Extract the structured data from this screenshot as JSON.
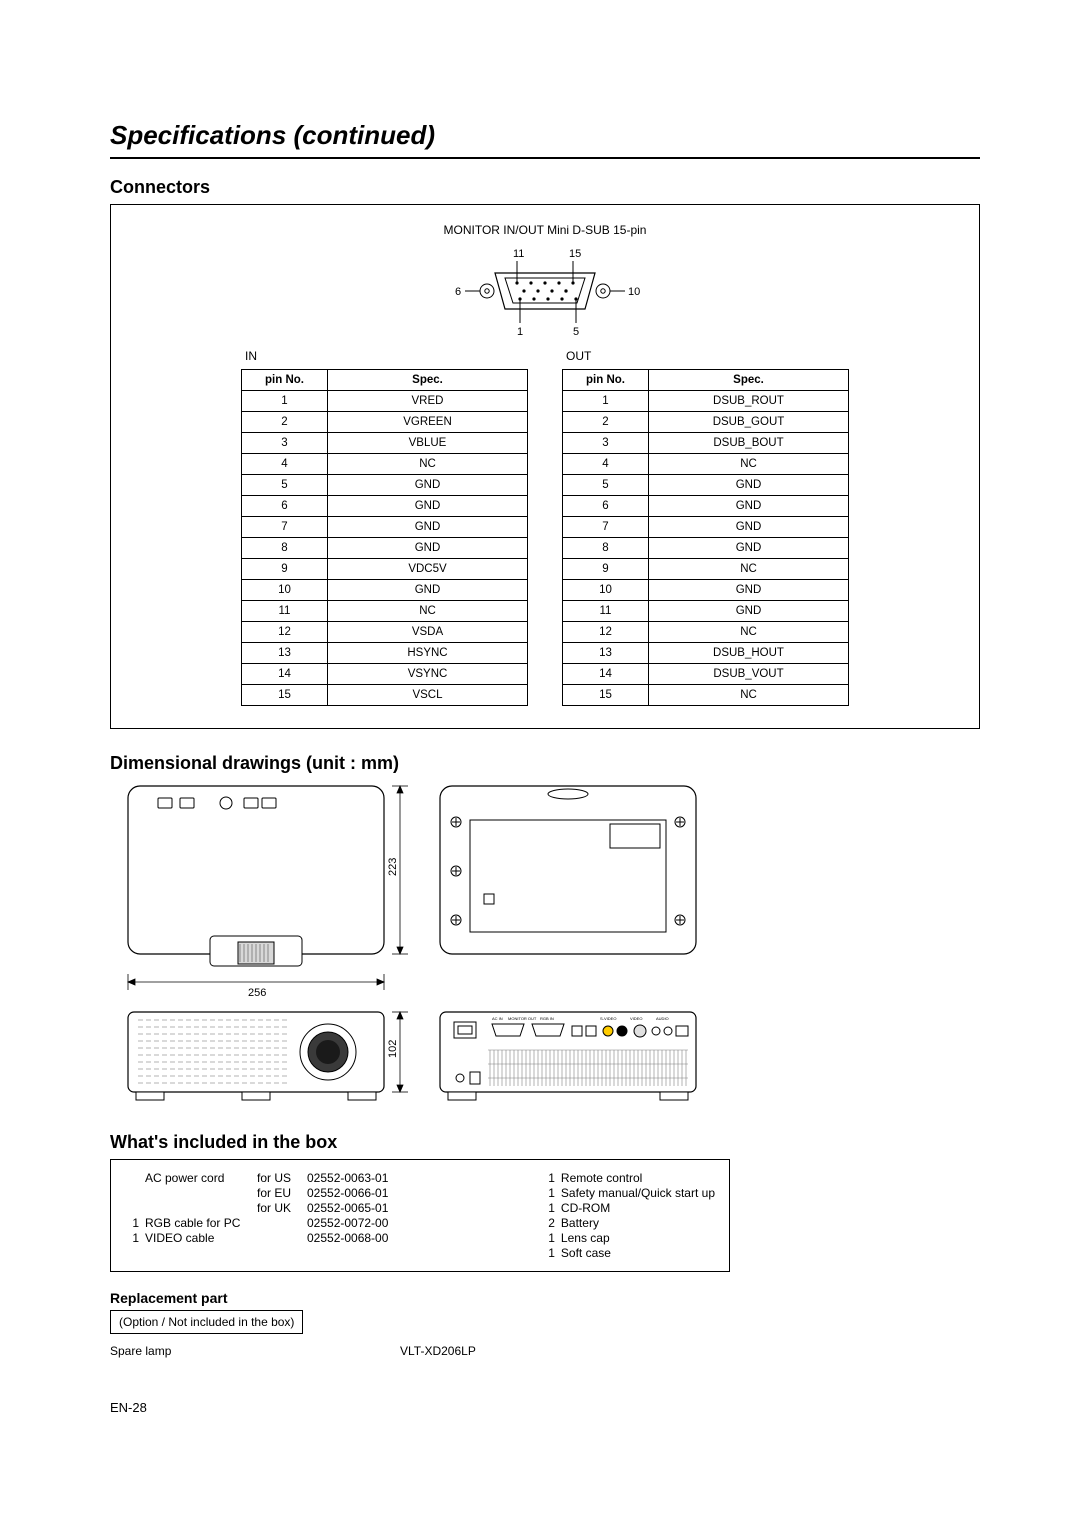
{
  "title": "Specifications (continued)",
  "sections": {
    "connectors": "Connectors",
    "dimensional": "Dimensional drawings (unit : mm)",
    "included": "What's included in the box",
    "replacement": "Replacement part"
  },
  "connector": {
    "caption": "MONITOR IN/OUT Mini D-SUB 15-pin",
    "diagram_labels": {
      "tl": "11",
      "tr": "15",
      "ml": "6",
      "mr": "10",
      "bl": "1",
      "br": "5"
    },
    "in_label": "IN",
    "out_label": "OUT",
    "headers": {
      "pin": "pin No.",
      "spec": "Spec."
    },
    "in_table": [
      {
        "pin": "1",
        "spec": "VRED"
      },
      {
        "pin": "2",
        "spec": "VGREEN"
      },
      {
        "pin": "3",
        "spec": "VBLUE"
      },
      {
        "pin": "4",
        "spec": "NC"
      },
      {
        "pin": "5",
        "spec": "GND"
      },
      {
        "pin": "6",
        "spec": "GND"
      },
      {
        "pin": "7",
        "spec": "GND"
      },
      {
        "pin": "8",
        "spec": "GND"
      },
      {
        "pin": "9",
        "spec": "VDC5V"
      },
      {
        "pin": "10",
        "spec": "GND"
      },
      {
        "pin": "11",
        "spec": "NC"
      },
      {
        "pin": "12",
        "spec": "VSDA"
      },
      {
        "pin": "13",
        "spec": "HSYNC"
      },
      {
        "pin": "14",
        "spec": "VSYNC"
      },
      {
        "pin": "15",
        "spec": "VSCL"
      }
    ],
    "out_table": [
      {
        "pin": "1",
        "spec": "DSUB_ROUT"
      },
      {
        "pin": "2",
        "spec": "DSUB_GOUT"
      },
      {
        "pin": "3",
        "spec": "DSUB_BOUT"
      },
      {
        "pin": "4",
        "spec": "NC"
      },
      {
        "pin": "5",
        "spec": "GND"
      },
      {
        "pin": "6",
        "spec": "GND"
      },
      {
        "pin": "7",
        "spec": "GND"
      },
      {
        "pin": "8",
        "spec": "GND"
      },
      {
        "pin": "9",
        "spec": "NC"
      },
      {
        "pin": "10",
        "spec": "GND"
      },
      {
        "pin": "11",
        "spec": "GND"
      },
      {
        "pin": "12",
        "spec": "NC"
      },
      {
        "pin": "13",
        "spec": "DSUB_HOUT"
      },
      {
        "pin": "14",
        "spec": "DSUB_VOUT"
      },
      {
        "pin": "15",
        "spec": "NC"
      }
    ]
  },
  "dimensions": {
    "width": "256",
    "height": "223",
    "depth": "102"
  },
  "included": {
    "power_cord_label": "AC power cord",
    "power_cords": [
      {
        "for": "for US",
        "code": "02552-0063-01"
      },
      {
        "for": "for EU",
        "code": "02552-0066-01"
      },
      {
        "for": "for UK",
        "code": "02552-0065-01"
      }
    ],
    "misc_left": [
      {
        "n": "1",
        "label": "RGB cable for PC",
        "code": "02552-0072-00"
      },
      {
        "n": "1",
        "label": "VIDEO cable",
        "code": "02552-0068-00"
      }
    ],
    "right": [
      {
        "n": "1",
        "label": "Remote control"
      },
      {
        "n": "1",
        "label": "Safety manual/Quick start up"
      },
      {
        "n": "1",
        "label": "CD-ROM"
      },
      {
        "n": "2",
        "label": "Battery"
      },
      {
        "n": "1",
        "label": "Lens cap"
      },
      {
        "n": "1",
        "label": "Soft case"
      }
    ]
  },
  "replacement": {
    "option_note": "(Option / Not included in the box)",
    "item_label": "Spare lamp",
    "item_code": "VLT-XD206LP"
  },
  "page_number": "EN-28"
}
